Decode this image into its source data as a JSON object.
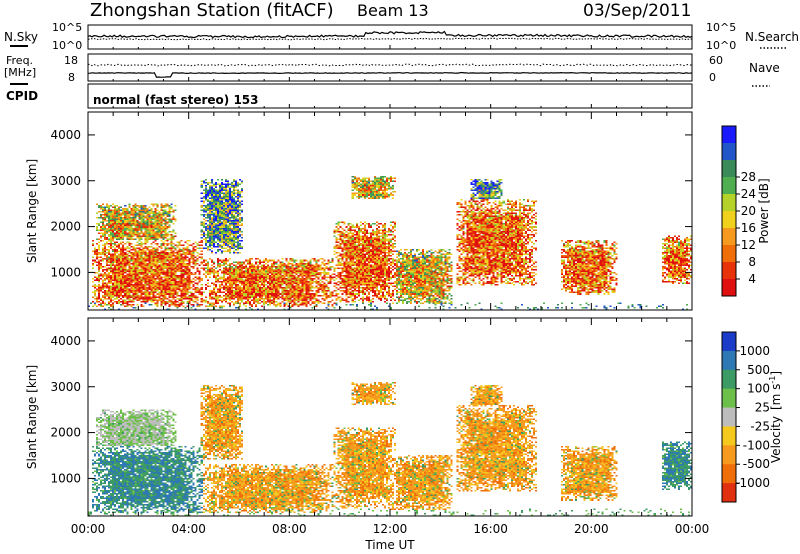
{
  "header": {
    "station": "Zhongshan Station (fitACF)",
    "beam": "Beam 13",
    "date": "03/Sep/2011"
  },
  "panels": {
    "nsky": {
      "label": "N.Sky",
      "top_tick": "10^5",
      "bottom_tick": "10^0",
      "right_label": "N.Search",
      "right_top_tick": "10^5",
      "right_bottom_tick": "10^0"
    },
    "freq": {
      "label": "Freq.",
      "units": "[MHz]",
      "top_tick": "18",
      "bottom_tick": "8",
      "right_label": "Nave",
      "right_top_tick": "60",
      "right_bottom_tick": "0"
    },
    "cpid": {
      "label": "CPID",
      "text": "normal (fast stereo) 153"
    }
  },
  "chart_data": [
    {
      "type": "heatmap",
      "name": "power",
      "ylabel": "Slant Range [km]",
      "xlabel": "",
      "yticks": [
        1000,
        2000,
        3000,
        4000
      ],
      "ylim": [
        180,
        4500
      ],
      "xlim_hours": [
        0,
        24
      ],
      "colorbar": {
        "label": "Power [dB]",
        "ticks": [
          "4",
          "8",
          "12",
          "16",
          "20",
          "24",
          "28"
        ],
        "colors": [
          "#1a1aff",
          "#2256c8",
          "#3a8a5a",
          "#4fae4f",
          "#b4d22a",
          "#f0d21e",
          "#f59a1e",
          "#f06e0a",
          "#e8320a",
          "#e01010"
        ]
      },
      "echo_regions": [
        {
          "t": [
            0.2,
            4.6
          ],
          "r": [
            250,
            1700
          ],
          "level": "high"
        },
        {
          "t": [
            0.3,
            3.5
          ],
          "r": [
            1600,
            2500
          ],
          "level": "medium"
        },
        {
          "t": [
            4.6,
            9.8
          ],
          "r": [
            250,
            1300
          ],
          "level": "high"
        },
        {
          "t": [
            4.5,
            6.2
          ],
          "r": [
            1400,
            3050
          ],
          "level": "low"
        },
        {
          "t": [
            9.8,
            12.2
          ],
          "r": [
            350,
            2100
          ],
          "level": "high"
        },
        {
          "t": [
            10.5,
            12.2
          ],
          "r": [
            2600,
            3100
          ],
          "level": "medium"
        },
        {
          "t": [
            12.0,
            14.5
          ],
          "r": [
            300,
            1500
          ],
          "level": "medium"
        },
        {
          "t": [
            14.6,
            17.8
          ],
          "r": [
            700,
            2600
          ],
          "level": "high"
        },
        {
          "t": [
            15.2,
            16.5
          ],
          "r": [
            2400,
            3050
          ],
          "level": "low"
        },
        {
          "t": [
            18.8,
            21.0
          ],
          "r": [
            500,
            1700
          ],
          "level": "high"
        },
        {
          "t": [
            22.8,
            24.0
          ],
          "r": [
            750,
            1800
          ],
          "level": "high"
        }
      ]
    },
    {
      "type": "heatmap",
      "name": "velocity",
      "ylabel": "Slant Range [km]",
      "xlabel": "Time UT",
      "yticks": [
        1000,
        2000,
        3000,
        4000
      ],
      "ylim": [
        180,
        4500
      ],
      "xlim_hours": [
        0,
        24
      ],
      "xticks": [
        "00:00",
        "04:00",
        "08:00",
        "12:00",
        "16:00",
        "20:00",
        "00:00"
      ],
      "colorbar": {
        "label": "Velocity",
        "units": "[m s",
        "units_sup": "-1",
        "units_close": "]",
        "ticks": [
          "1000",
          "500",
          "100",
          "25",
          "-25",
          "-100",
          "-500",
          "-1000"
        ],
        "colors": [
          "#1a3cc8",
          "#2e78b4",
          "#3c9a64",
          "#6cc04a",
          "#bdbdbd",
          "#f5c81e",
          "#f59a1e",
          "#f06e0a",
          "#e03010"
        ]
      },
      "echo_regions": [
        {
          "t": [
            0.2,
            4.6
          ],
          "r": [
            250,
            1700
          ],
          "dominant": "toward"
        },
        {
          "t": [
            0.3,
            3.5
          ],
          "r": [
            1600,
            2500
          ],
          "dominant": "ground"
        },
        {
          "t": [
            4.6,
            9.8
          ],
          "r": [
            250,
            1300
          ],
          "dominant": "away"
        },
        {
          "t": [
            4.5,
            6.2
          ],
          "r": [
            1400,
            3050
          ],
          "dominant": "away"
        },
        {
          "t": [
            9.8,
            12.2
          ],
          "r": [
            350,
            2100
          ],
          "dominant": "away"
        },
        {
          "t": [
            10.5,
            12.2
          ],
          "r": [
            2600,
            3100
          ],
          "dominant": "away"
        },
        {
          "t": [
            12.0,
            14.5
          ],
          "r": [
            300,
            1500
          ],
          "dominant": "away"
        },
        {
          "t": [
            14.6,
            17.8
          ],
          "r": [
            700,
            2600
          ],
          "dominant": "away"
        },
        {
          "t": [
            15.2,
            16.5
          ],
          "r": [
            2400,
            3050
          ],
          "dominant": "away"
        },
        {
          "t": [
            18.8,
            21.0
          ],
          "r": [
            500,
            1700
          ],
          "dominant": "away"
        },
        {
          "t": [
            22.8,
            24.0
          ],
          "r": [
            750,
            1800
          ],
          "dominant": "toward"
        }
      ]
    }
  ]
}
